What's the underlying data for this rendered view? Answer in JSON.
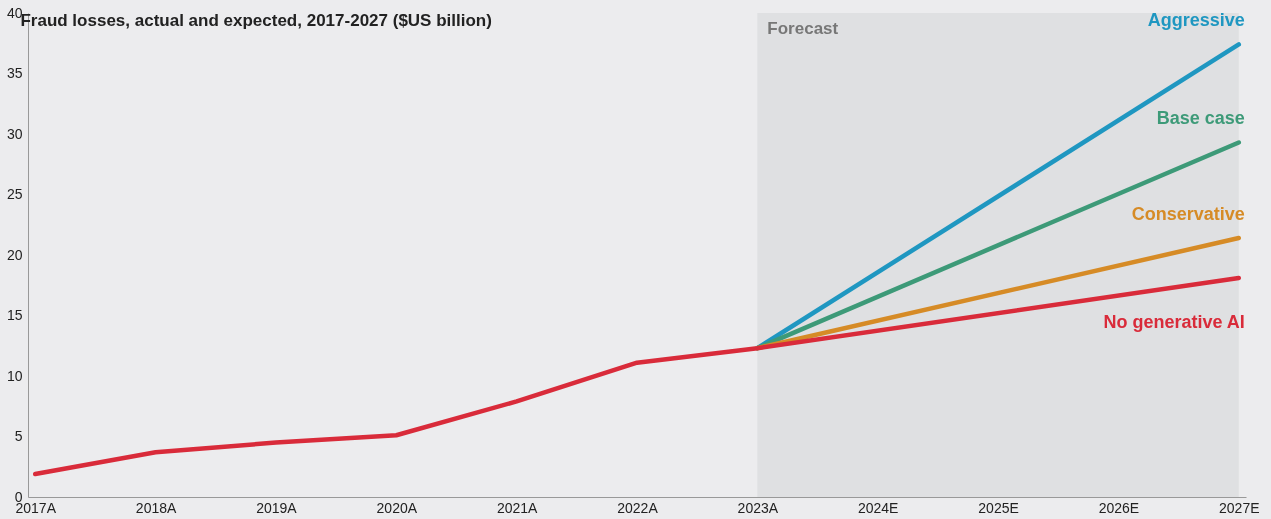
{
  "chart_data": {
    "type": "line",
    "title": "Fraud losses, actual and expected, 2017-2027 ($US billion)",
    "categories": [
      "2017A",
      "2018A",
      "2019A",
      "2020A",
      "2021A",
      "2022A",
      "2023A",
      "2024E",
      "2025E",
      "2026E",
      "2027E"
    ],
    "series": [
      {
        "name": "Aggressive",
        "color": "#1f97c1",
        "values": [
          null,
          null,
          null,
          null,
          null,
          null,
          12.3,
          null,
          null,
          null,
          37.4
        ]
      },
      {
        "name": "Base case",
        "color": "#3d9a78",
        "values": [
          null,
          null,
          null,
          null,
          null,
          null,
          12.3,
          null,
          null,
          null,
          29.3
        ]
      },
      {
        "name": "Conservative",
        "color": "#d68b26",
        "values": [
          null,
          null,
          null,
          null,
          null,
          null,
          12.3,
          null,
          null,
          null,
          21.4
        ]
      },
      {
        "name": "No generative AI",
        "color": "#d92b3a",
        "values": [
          1.9,
          3.7,
          4.5,
          5.1,
          7.9,
          11.1,
          12.3,
          null,
          null,
          null,
          18.1
        ]
      }
    ],
    "ylim": [
      0,
      40
    ],
    "yticks": [
      0,
      5,
      10,
      15,
      20,
      25,
      30,
      35,
      40
    ],
    "bands": [
      {
        "axis": "x",
        "from": "2023A",
        "to": "2027E",
        "label": "Forecast",
        "color": "#dfe0e2"
      }
    ],
    "legend": false
  }
}
